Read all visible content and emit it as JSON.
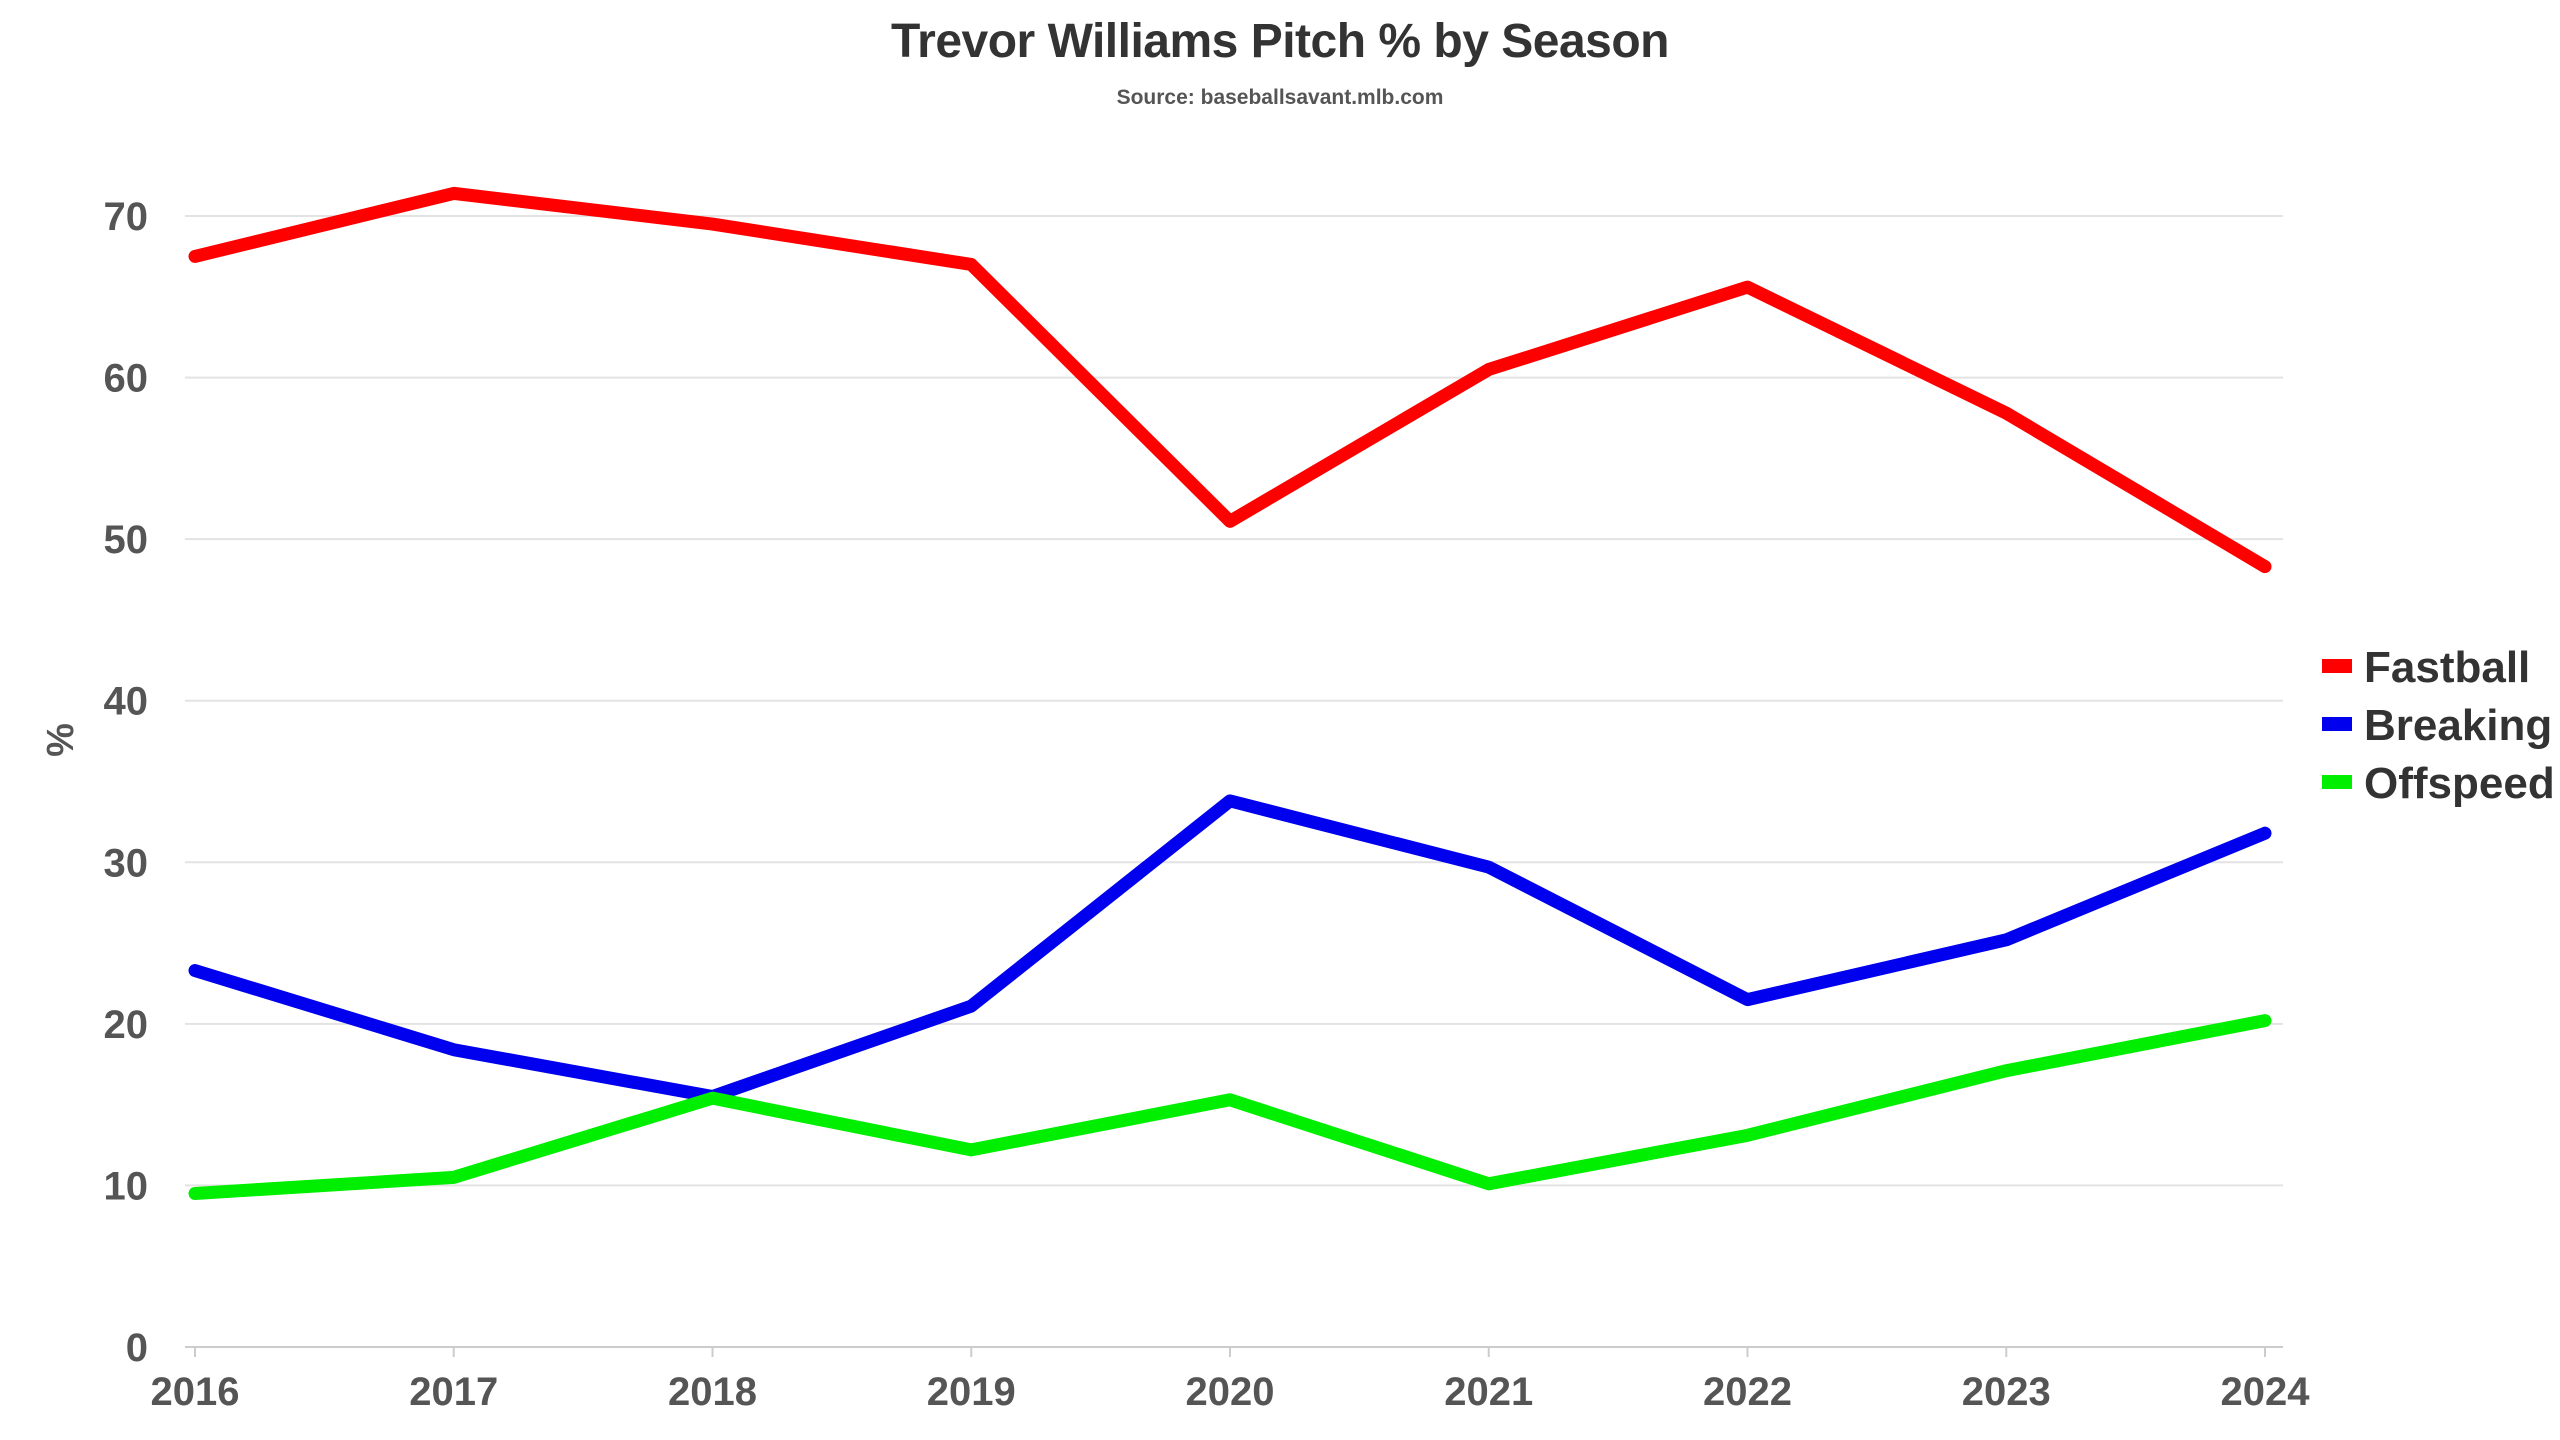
{
  "chart_data": {
    "type": "line",
    "title": "Trevor Williams Pitch % by Season",
    "subtitle": "Source: baseballsavant.mlb.com",
    "xlabel": "",
    "ylabel": "%",
    "x": [
      "2016",
      "2017",
      "2018",
      "2019",
      "2020",
      "2021",
      "2022",
      "2023",
      "2024"
    ],
    "ylim": [
      0,
      70
    ],
    "yticks": [
      "0",
      "10",
      "20",
      "30",
      "40",
      "50",
      "60",
      "70"
    ],
    "grid": true,
    "legend_position": "right",
    "series": [
      {
        "name": "Fastball",
        "color": "#ff0000",
        "values": [
          67.5,
          71.4,
          69.5,
          67.0,
          51.1,
          60.5,
          65.6,
          57.8,
          48.3
        ]
      },
      {
        "name": "Breaking",
        "color": "#0000ee",
        "values": [
          23.3,
          18.4,
          15.5,
          21.1,
          33.8,
          29.7,
          21.5,
          25.2,
          31.8
        ]
      },
      {
        "name": "Offspeed",
        "color": "#00ee00",
        "values": [
          9.5,
          10.5,
          15.4,
          12.2,
          15.3,
          10.1,
          13.1,
          17.1,
          20.2
        ]
      }
    ]
  }
}
